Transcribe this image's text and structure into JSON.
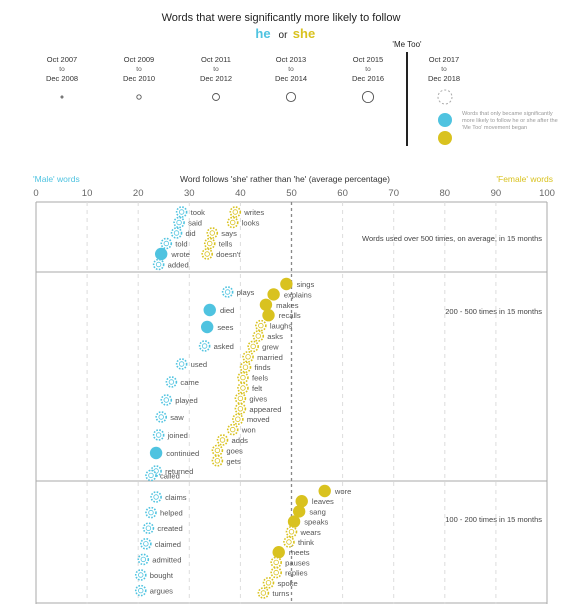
{
  "colors": {
    "he": "#4fc3e0",
    "she": "#d9c21f",
    "grid": "#c9c9c9",
    "text": "#555555",
    "metoo_line": "#222222"
  },
  "header": {
    "title": "Words that were significantly more likely to follow",
    "he": "he",
    "or": "or",
    "she": "she",
    "metoo_label": "'Me Too'",
    "legend_note": "Words that only became significantly more likely to follow he or she after the 'Me Too' movement began"
  },
  "periods": [
    {
      "from": "Oct 2007",
      "to_word": "to",
      "until": "Dec 2008"
    },
    {
      "from": "Oct 2009",
      "to_word": "to",
      "until": "Dec 2010"
    },
    {
      "from": "Oct 2011",
      "to_word": "to",
      "until": "Dec 2012"
    },
    {
      "from": "Oct 2013",
      "to_word": "to",
      "until": "Dec 2014"
    },
    {
      "from": "Oct 2015",
      "to_word": "to",
      "until": "Dec 2016"
    },
    {
      "from": "Oct 2017",
      "to_word": "to",
      "until": "Dec 2018"
    }
  ],
  "axis": {
    "left_label": "'Male' words",
    "center_label": "Word follows 'she' rather than 'he' (average percentage)",
    "right_label": "'Female' words",
    "ticks": [
      0,
      10,
      20,
      30,
      40,
      50,
      60,
      70,
      80,
      90,
      100
    ]
  },
  "chart_data": {
    "type": "scatter",
    "xlim": [
      0,
      100
    ],
    "reference_line": 50,
    "panels": [
      {
        "label": "Words used over 500 times, on average, in 15 months",
        "points": [
          {
            "word": "took",
            "x": 28.5,
            "group": "he",
            "style": "dashed"
          },
          {
            "word": "said",
            "x": 28.0,
            "group": "he",
            "style": "dashed"
          },
          {
            "word": "did",
            "x": 27.5,
            "group": "he",
            "style": "dashed"
          },
          {
            "word": "told",
            "x": 25.5,
            "group": "he",
            "style": "dashed"
          },
          {
            "word": "wrote",
            "x": 24.5,
            "group": "he",
            "style": "filled"
          },
          {
            "word": "added",
            "x": 24.0,
            "group": "he",
            "style": "dashed"
          },
          {
            "word": "writes",
            "x": 39.0,
            "group": "she",
            "style": "dashed"
          },
          {
            "word": "looks",
            "x": 38.5,
            "group": "she",
            "style": "dashed"
          },
          {
            "word": "says",
            "x": 34.5,
            "group": "she",
            "style": "dashed"
          },
          {
            "word": "tells",
            "x": 34.0,
            "group": "she",
            "style": "dashed"
          },
          {
            "word": "doesn't",
            "x": 33.5,
            "group": "she",
            "style": "dashed"
          }
        ]
      },
      {
        "label": "200 - 500 times in 15 months",
        "points": [
          {
            "word": "sings",
            "x": 49.0,
            "group": "she",
            "style": "filled"
          },
          {
            "word": "explains",
            "x": 46.5,
            "group": "she",
            "style": "filled"
          },
          {
            "word": "makes",
            "x": 45.0,
            "group": "she",
            "style": "filled"
          },
          {
            "word": "recalls",
            "x": 45.5,
            "group": "she",
            "style": "filled"
          },
          {
            "word": "laughs",
            "x": 44.0,
            "group": "she",
            "style": "dashed"
          },
          {
            "word": "asks",
            "x": 43.5,
            "group": "she",
            "style": "dashed"
          },
          {
            "word": "grew",
            "x": 42.5,
            "group": "she",
            "style": "dashed"
          },
          {
            "word": "married",
            "x": 41.5,
            "group": "she",
            "style": "dashed"
          },
          {
            "word": "finds",
            "x": 41.0,
            "group": "she",
            "style": "dashed"
          },
          {
            "word": "feels",
            "x": 40.5,
            "group": "she",
            "style": "dashed"
          },
          {
            "word": "felt",
            "x": 40.5,
            "group": "she",
            "style": "dashed"
          },
          {
            "word": "gives",
            "x": 40.0,
            "group": "she",
            "style": "dashed"
          },
          {
            "word": "appeared",
            "x": 40.0,
            "group": "she",
            "style": "dashed"
          },
          {
            "word": "moved",
            "x": 39.5,
            "group": "she",
            "style": "dashed"
          },
          {
            "word": "won",
            "x": 38.5,
            "group": "she",
            "style": "dashed"
          },
          {
            "word": "plays",
            "x": 37.5,
            "group": "he",
            "style": "dashed"
          },
          {
            "word": "adds",
            "x": 36.5,
            "group": "she",
            "style": "dashed"
          },
          {
            "word": "goes",
            "x": 35.5,
            "group": "she",
            "style": "dashed"
          },
          {
            "word": "gets",
            "x": 35.5,
            "group": "she",
            "style": "dashed"
          },
          {
            "word": "died",
            "x": 34.0,
            "group": "he",
            "style": "filled"
          },
          {
            "word": "sees",
            "x": 33.5,
            "group": "he",
            "style": "filled"
          },
          {
            "word": "asked",
            "x": 33.0,
            "group": "he",
            "style": "dashed"
          },
          {
            "word": "used",
            "x": 28.5,
            "group": "he",
            "style": "dashed"
          },
          {
            "word": "came",
            "x": 26.5,
            "group": "he",
            "style": "dashed"
          },
          {
            "word": "played",
            "x": 25.5,
            "group": "he",
            "style": "dashed"
          },
          {
            "word": "saw",
            "x": 24.5,
            "group": "he",
            "style": "dashed"
          },
          {
            "word": "joined",
            "x": 24.0,
            "group": "he",
            "style": "dashed"
          },
          {
            "word": "continued",
            "x": 23.5,
            "group": "he",
            "style": "filled"
          },
          {
            "word": "returned",
            "x": 23.5,
            "group": "he",
            "style": "dashed"
          },
          {
            "word": "called",
            "x": 22.5,
            "group": "he",
            "style": "dashed"
          }
        ]
      },
      {
        "label": "100 - 200 times in 15 months",
        "points": [
          {
            "word": "wore",
            "x": 56.5,
            "group": "she",
            "style": "filled"
          },
          {
            "word": "leaves",
            "x": 52.0,
            "group": "she",
            "style": "filled"
          },
          {
            "word": "sang",
            "x": 51.5,
            "group": "she",
            "style": "filled"
          },
          {
            "word": "speaks",
            "x": 50.5,
            "group": "she",
            "style": "filled"
          },
          {
            "word": "wears",
            "x": 50.0,
            "group": "she",
            "style": "dashed"
          },
          {
            "word": "think",
            "x": 49.5,
            "group": "she",
            "style": "dashed"
          },
          {
            "word": "meets",
            "x": 47.5,
            "group": "she",
            "style": "filled"
          },
          {
            "word": "pauses",
            "x": 47.0,
            "group": "she",
            "style": "dashed"
          },
          {
            "word": "replies",
            "x": 47.0,
            "group": "she",
            "style": "dashed"
          },
          {
            "word": "spoke",
            "x": 45.5,
            "group": "she",
            "style": "dashed"
          },
          {
            "word": "turns",
            "x": 44.5,
            "group": "she",
            "style": "dashed"
          },
          {
            "word": "claims",
            "x": 23.5,
            "group": "he",
            "style": "dashed"
          },
          {
            "word": "helped",
            "x": 22.5,
            "group": "he",
            "style": "dashed"
          },
          {
            "word": "created",
            "x": 22.0,
            "group": "he",
            "style": "dashed"
          },
          {
            "word": "claimed",
            "x": 21.5,
            "group": "he",
            "style": "dashed"
          },
          {
            "word": "admitted",
            "x": 21.0,
            "group": "he",
            "style": "dashed"
          },
          {
            "word": "bought",
            "x": 20.5,
            "group": "he",
            "style": "dashed"
          },
          {
            "word": "argues",
            "x": 20.5,
            "group": "he",
            "style": "dashed"
          }
        ]
      }
    ]
  }
}
